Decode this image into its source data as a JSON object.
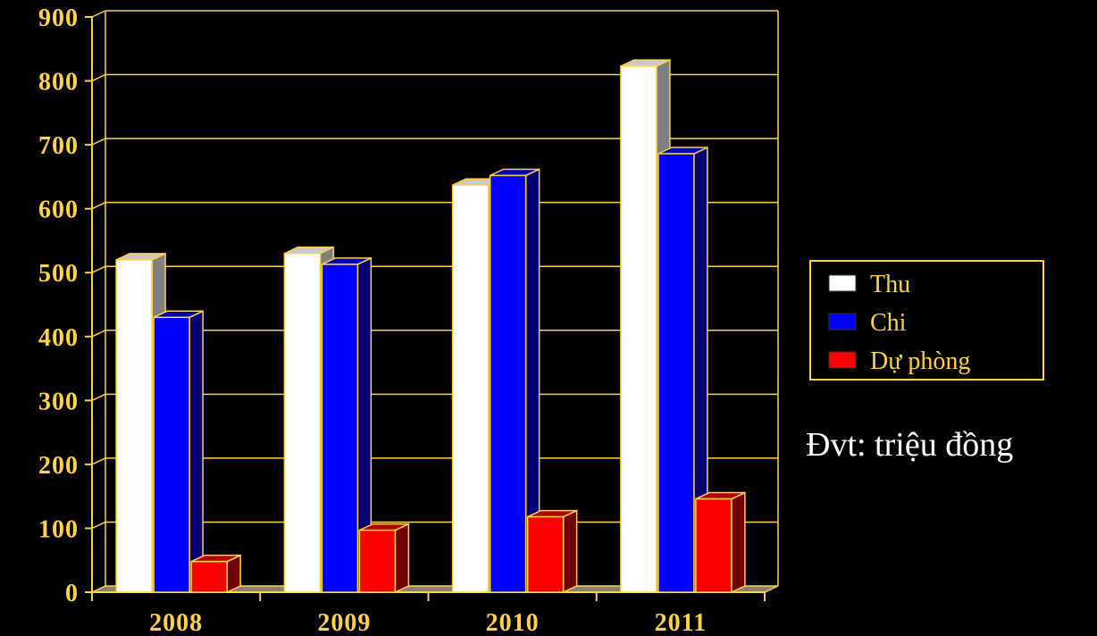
{
  "chart_data": {
    "type": "bar",
    "categories": [
      "2008",
      "2009",
      "2010",
      "2011"
    ],
    "series": [
      {
        "name": "Thu",
        "values": [
          520,
          530,
          637,
          823
        ]
      },
      {
        "name": "Chi",
        "values": [
          430,
          513,
          652,
          686
        ]
      },
      {
        "name": "Dự phòng",
        "values": [
          48,
          97,
          118,
          146
        ]
      }
    ],
    "ylim": [
      0,
      900
    ],
    "yticks": [
      "0",
      "100",
      "200",
      "300",
      "400",
      "500",
      "600",
      "700",
      "800",
      "900"
    ],
    "grid": true,
    "legend_position": "right",
    "three_d": true
  },
  "unit_note": "Đvt: triệu đồng",
  "colors": {
    "background": "#000000",
    "axis": "#ffd24a",
    "bar_outline": "#ffd24a",
    "Thu": "#ffffff",
    "Chi": "#0000ff",
    "Dự phòng": "#ff0000"
  }
}
